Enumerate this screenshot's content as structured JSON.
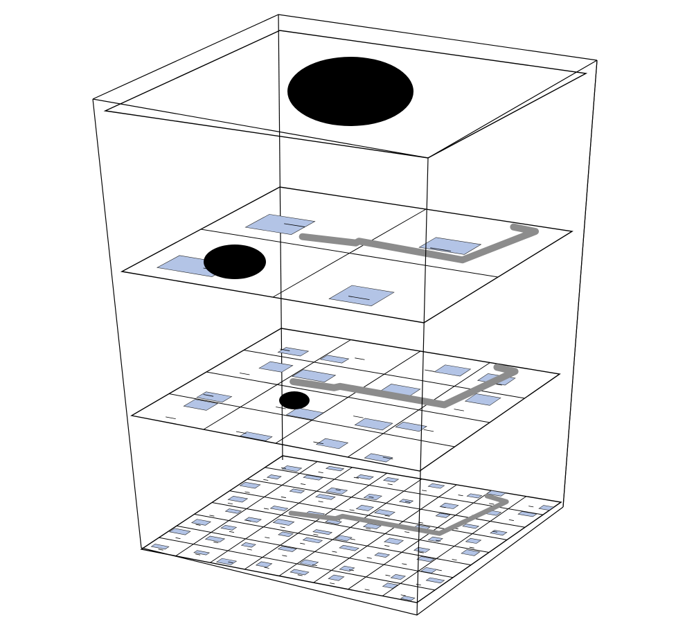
{
  "figure": {
    "layers": [
      {
        "id": "top",
        "grid": 1,
        "blobs": 1,
        "path": false,
        "rects": 0
      },
      {
        "id": "coarse",
        "grid": 2,
        "blobs": 1,
        "path": true,
        "rects": 4
      },
      {
        "id": "medium",
        "grid": 4,
        "blobs": 1,
        "path": true,
        "rects": 16
      },
      {
        "id": "fine",
        "grid": 8,
        "blobs": 0,
        "path": true,
        "rects": 64
      }
    ],
    "colors": {
      "edge": "#000000",
      "cell_fill": "#b3c4e6",
      "path": "#8c8c8c",
      "blob": "#000000",
      "background": "#ffffff"
    }
  }
}
